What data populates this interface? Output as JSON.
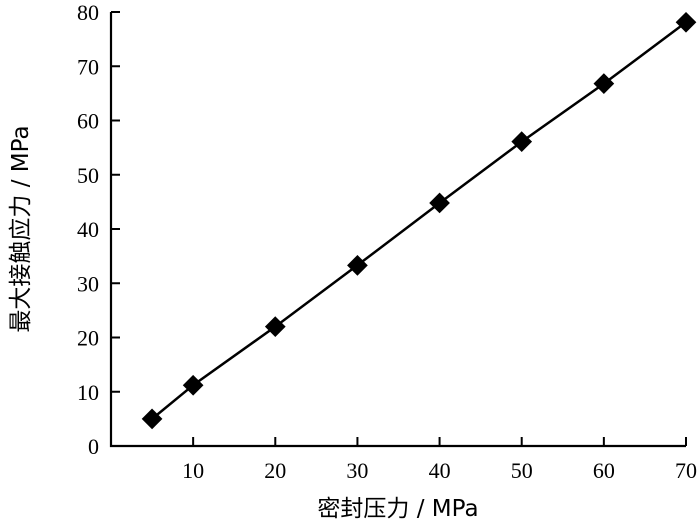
{
  "chart_data": {
    "type": "line",
    "xlabel": "密封压力 / MPa",
    "ylabel": "最大接触应力 / MPa",
    "xlim": [
      0,
      70
    ],
    "ylim": [
      0,
      80
    ],
    "x_ticks": [
      "10",
      "20",
      "30",
      "40",
      "50",
      "60",
      "70"
    ],
    "y_ticks": [
      "0",
      "10",
      "20",
      "30",
      "40",
      "50",
      "60",
      "70",
      "80"
    ],
    "x_tick_values": [
      10,
      20,
      30,
      40,
      50,
      60,
      70
    ],
    "y_tick_values": [
      0,
      10,
      20,
      30,
      40,
      50,
      60,
      70,
      80
    ],
    "grid": false,
    "marker": "diamond",
    "series_color": "#000000",
    "series": [
      {
        "x": [
          5,
          10,
          20,
          30,
          40,
          50,
          60,
          70
        ],
        "values": [
          5.0,
          11.2,
          22.0,
          33.3,
          44.8,
          56.1,
          66.8,
          78.1
        ]
      }
    ]
  }
}
